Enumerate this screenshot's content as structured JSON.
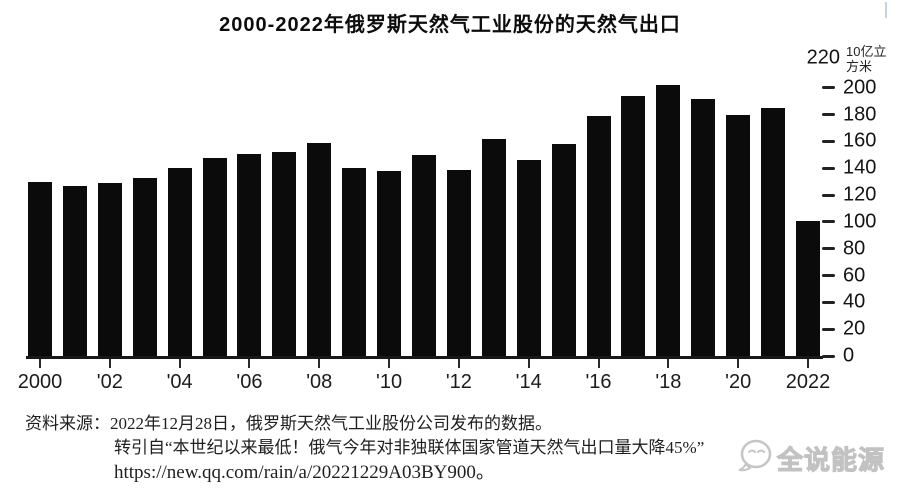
{
  "title": "2000-2022年俄罗斯天然气工业股份的天然气出口",
  "chart_data": {
    "type": "bar",
    "title": "2000-2022年俄罗斯天然气工业股份的天然气出口",
    "ylabel_unit": "10亿立方米",
    "unit_lines": [
      "10亿立",
      "方米"
    ],
    "years": [
      2000,
      2001,
      2002,
      2003,
      2004,
      2005,
      2006,
      2007,
      2008,
      2009,
      2010,
      2011,
      2012,
      2013,
      2014,
      2015,
      2016,
      2017,
      2018,
      2019,
      2020,
      2021,
      2022
    ],
    "values": [
      130,
      127,
      129,
      133,
      140,
      148,
      151,
      152,
      159,
      140,
      138,
      150,
      139,
      162,
      146,
      158,
      179,
      194,
      202,
      192,
      180,
      185,
      101
    ],
    "x_tick_years": [
      2000,
      2002,
      2004,
      2006,
      2008,
      2010,
      2012,
      2014,
      2016,
      2018,
      2020,
      2022
    ],
    "x_tick_labels": [
      "2000",
      "'02",
      "'04",
      "'06",
      "'08",
      "'10",
      "'12",
      "'14",
      "'16",
      "'18",
      "'20",
      "2022"
    ],
    "y_ticks": [
      0,
      20,
      40,
      60,
      80,
      100,
      120,
      140,
      160,
      180,
      200
    ],
    "y_max_label": "220",
    "ylim": [
      0,
      220
    ],
    "grid": false,
    "legend": "none",
    "bar_color": "#0b0b0b"
  },
  "source": {
    "line1": "资料来源：2022年12月28日，俄罗斯天然气工业股份公司发布的数据。",
    "line2": "转引自“本世纪以来最低！俄气今年对非独联体国家管道天然气出口量大降45%”",
    "line3": "https://new.qq.com/rain/a/20221229A03BY900。"
  },
  "watermark": {
    "text": "全说能源",
    "color": "#c7c7c7"
  }
}
